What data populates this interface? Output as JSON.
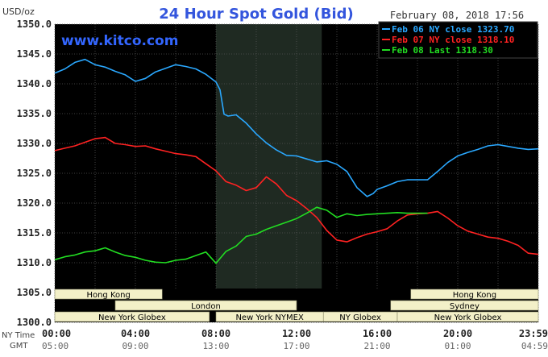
{
  "chart_data": {
    "type": "line",
    "title": "24 Hour Spot Gold (Bid)",
    "timestamp": "February 08, 2018 17:56",
    "watermark": "www.kitco.com",
    "y_unit": "USD/oz",
    "ylim": [
      1300,
      1350
    ],
    "y_ticks": [
      "1350.0",
      "1345.0",
      "1340.0",
      "1335.0",
      "1330.0",
      "1325.0",
      "1320.0",
      "1315.0",
      "1310.0",
      "1305.0",
      "1300.0"
    ],
    "x_ticks": [
      "00:00",
      "04:00",
      "08:00",
      "12:00",
      "16:00",
      "20:00",
      "23:59"
    ],
    "gmt_ticks": [
      "05:00",
      "09:00",
      "13:00",
      "17:00",
      "21:00",
      "01:00",
      "04:59"
    ],
    "row_labels": {
      "ny": "NY Time",
      "gmt": "GMT"
    },
    "grid": true,
    "legend_position": "top-right",
    "shaded_session": [
      8,
      13.25
    ],
    "series": [
      {
        "name": "Feb 06 NY close 1323.70",
        "color": "#2aa8ff",
        "x": [
          0,
          0.5,
          1,
          1.5,
          2,
          2.5,
          3,
          3.5,
          4,
          4.5,
          5,
          5.5,
          6,
          6.5,
          7,
          7.5,
          8,
          8.2,
          8.4,
          8.6,
          9,
          9.5,
          10,
          10.5,
          11,
          11.5,
          12,
          12.5,
          13,
          13.5,
          14,
          14.5,
          15,
          15.5,
          15.8,
          16,
          16.5,
          17,
          17.5,
          18,
          18.5,
          19,
          19.5,
          20,
          20.5,
          21,
          21.5,
          22,
          22.5,
          23,
          23.5,
          24
        ],
        "y": [
          1341.8,
          1342.5,
          1343.6,
          1344.1,
          1343.2,
          1342.8,
          1342.1,
          1341.5,
          1340.4,
          1340.9,
          1342.0,
          1342.6,
          1343.2,
          1342.9,
          1342.5,
          1341.6,
          1340.3,
          1339.0,
          1334.9,
          1334.6,
          1334.8,
          1333.4,
          1331.6,
          1330.1,
          1328.9,
          1328.0,
          1327.9,
          1327.4,
          1326.9,
          1327.1,
          1326.5,
          1325.3,
          1322.6,
          1321.1,
          1321.6,
          1322.3,
          1322.9,
          1323.6,
          1323.9,
          1323.9,
          1323.9,
          1325.3,
          1326.8,
          1327.9,
          1328.5,
          1329.0,
          1329.6,
          1329.8,
          1329.5,
          1329.2,
          1329.0,
          1329.1
        ]
      },
      {
        "name": "Feb 07 NY close 1318.10",
        "color": "#ff2222",
        "x": [
          0,
          0.5,
          1,
          1.5,
          2,
          2.5,
          3,
          3.5,
          4,
          4.5,
          5,
          5.5,
          6,
          6.5,
          7,
          7.5,
          8,
          8.5,
          9,
          9.5,
          10,
          10.5,
          11,
          11.5,
          12,
          12.5,
          13,
          13.5,
          14,
          14.5,
          15,
          15.5,
          16,
          16.5,
          17,
          17.5,
          18,
          18.5,
          19,
          19.5,
          20,
          20.5,
          21,
          21.5,
          22,
          22.5,
          23,
          23.5,
          24
        ],
        "y": [
          1328.8,
          1329.2,
          1329.6,
          1330.2,
          1330.8,
          1331.0,
          1330.0,
          1329.8,
          1329.5,
          1329.6,
          1329.1,
          1328.7,
          1328.3,
          1328.1,
          1327.8,
          1326.6,
          1325.4,
          1323.6,
          1323.0,
          1322.1,
          1322.6,
          1324.4,
          1323.2,
          1321.3,
          1320.4,
          1319.1,
          1317.6,
          1315.4,
          1313.8,
          1313.5,
          1314.2,
          1314.8,
          1315.2,
          1315.7,
          1317.0,
          1318.0,
          1318.2,
          1318.3,
          1318.6,
          1317.5,
          1316.2,
          1315.3,
          1314.8,
          1314.3,
          1314.1,
          1313.6,
          1312.9,
          1311.6,
          1311.4
        ]
      },
      {
        "name": "Feb 08 Last 1318.30",
        "color": "#22dd22",
        "x": [
          0,
          0.5,
          1,
          1.5,
          2,
          2.5,
          3,
          3.5,
          4,
          4.5,
          5,
          5.5,
          6,
          6.5,
          7,
          7.5,
          8,
          8.5,
          9,
          9.5,
          10,
          10.5,
          11,
          11.5,
          12,
          12.5,
          13,
          13.5,
          14,
          14.5,
          15,
          15.5,
          16,
          16.5,
          17,
          17.5,
          18,
          18.5
        ],
        "y": [
          1310.5,
          1311.0,
          1311.3,
          1311.8,
          1312.0,
          1312.5,
          1311.8,
          1311.2,
          1310.9,
          1310.4,
          1310.1,
          1310.0,
          1310.4,
          1310.6,
          1311.2,
          1311.8,
          1309.9,
          1311.9,
          1312.8,
          1314.4,
          1314.8,
          1315.6,
          1316.2,
          1316.8,
          1317.4,
          1318.3,
          1319.3,
          1318.8,
          1317.6,
          1318.2,
          1317.9,
          1318.1,
          1318.2,
          1318.3,
          1318.4,
          1318.3,
          1318.3,
          1318.3
        ]
      }
    ]
  },
  "market_sessions": [
    {
      "label": "Hong Kong",
      "start": 0,
      "end": 5.33,
      "row": 0
    },
    {
      "label": "Hong Kong",
      "start": 17.67,
      "end": 24,
      "row": 0
    },
    {
      "label": "London",
      "start": 3.0,
      "end": 12.0,
      "row": 1
    },
    {
      "label": "Sydney",
      "start": 16.67,
      "end": 24,
      "row": 1
    },
    {
      "label": "New York Globex",
      "start": 0,
      "end": 7.67,
      "row": 2
    },
    {
      "label": "New York NYMEX",
      "start": 8.0,
      "end": 13.33,
      "row": 2
    },
    {
      "label": "NY Globex",
      "start": 13.33,
      "end": 17.0,
      "row": 2
    },
    {
      "label": "New York Globex",
      "start": 17.0,
      "end": 24,
      "row": 2
    }
  ]
}
